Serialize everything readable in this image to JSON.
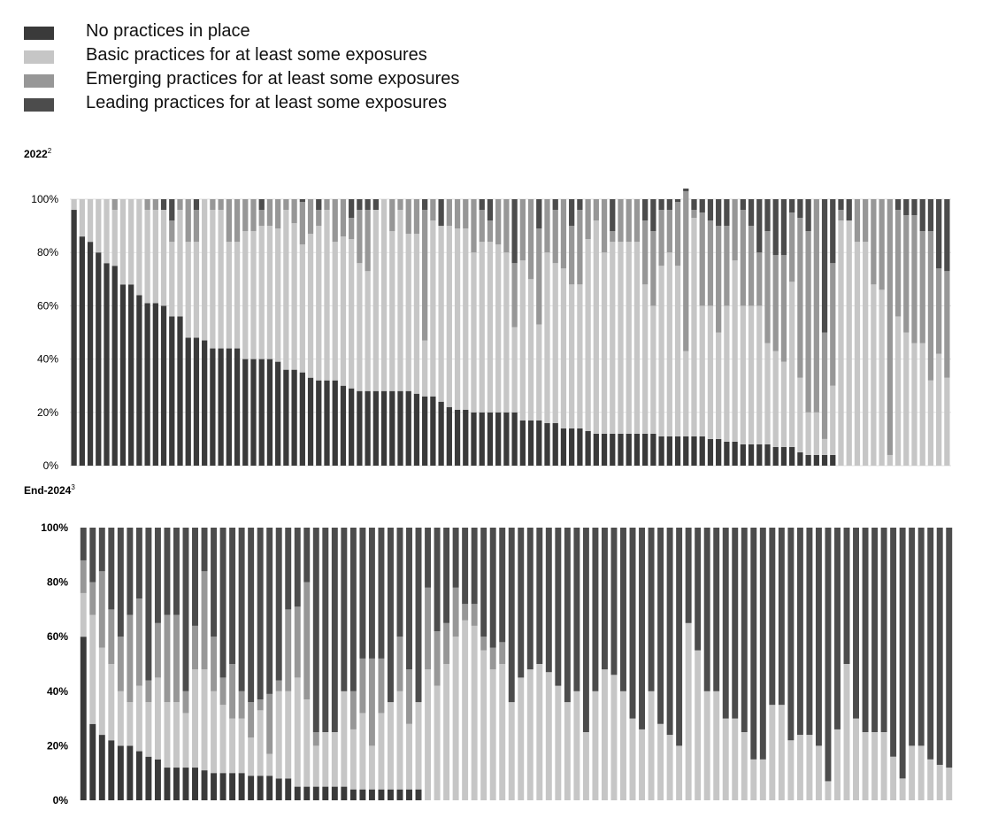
{
  "legend": [
    {
      "label": "No practices in place",
      "color": "#3a3a3a"
    },
    {
      "label": "Basic practices for at least some exposures",
      "color": "#c6c6c6"
    },
    {
      "label": "Emerging practices for at least some exposures",
      "color": "#979797"
    },
    {
      "label": "Leading practices for at least some exposures",
      "color": "#4c4c4c"
    }
  ],
  "chart_data": [
    {
      "type": "bar",
      "title": "2022",
      "title_note": "2",
      "stacked": true,
      "ylim": [
        0,
        100
      ],
      "yticks": [
        "0%",
        "20%",
        "40%",
        "60%",
        "80%",
        "100%"
      ],
      "series_names": [
        "No practices in place",
        "Basic practices for at least some exposures",
        "Emerging practices for at least some exposures",
        "Leading practices for at least some exposures"
      ],
      "bars": [
        [
          96,
          4,
          0,
          0
        ],
        [
          86,
          14,
          0,
          0
        ],
        [
          84,
          16,
          0,
          0
        ],
        [
          80,
          20,
          0,
          0
        ],
        [
          76,
          24,
          0,
          0
        ],
        [
          75,
          21,
          4,
          0
        ],
        [
          68,
          32,
          0,
          0
        ],
        [
          68,
          32,
          0,
          0
        ],
        [
          64,
          36,
          0,
          0
        ],
        [
          61,
          35,
          4,
          0
        ],
        [
          61,
          35,
          4,
          0
        ],
        [
          60,
          36,
          0,
          4
        ],
        [
          56,
          28,
          8,
          8
        ],
        [
          56,
          40,
          4,
          0
        ],
        [
          48,
          36,
          16,
          0
        ],
        [
          48,
          36,
          12,
          4
        ],
        [
          47,
          53,
          0,
          0
        ],
        [
          44,
          52,
          4,
          0
        ],
        [
          44,
          52,
          4,
          0
        ],
        [
          44,
          40,
          16,
          0
        ],
        [
          44,
          40,
          16,
          0
        ],
        [
          40,
          48,
          12,
          0
        ],
        [
          40,
          48,
          12,
          0
        ],
        [
          40,
          50,
          6,
          4
        ],
        [
          40,
          50,
          10,
          0
        ],
        [
          39,
          50,
          11,
          0
        ],
        [
          36,
          60,
          4,
          0
        ],
        [
          36,
          55,
          9,
          0
        ],
        [
          35,
          48,
          16,
          1
        ],
        [
          33,
          54,
          13,
          0
        ],
        [
          32,
          58,
          6,
          4
        ],
        [
          32,
          64,
          4,
          0
        ],
        [
          32,
          52,
          16,
          0
        ],
        [
          30,
          56,
          14,
          0
        ],
        [
          29,
          56,
          8,
          7
        ],
        [
          28,
          48,
          20,
          4
        ],
        [
          28,
          45,
          23,
          4
        ],
        [
          28,
          68,
          0,
          4
        ],
        [
          28,
          72,
          0,
          0
        ],
        [
          28,
          60,
          12,
          0
        ],
        [
          28,
          68,
          4,
          0
        ],
        [
          28,
          59,
          13,
          0
        ],
        [
          27,
          60,
          13,
          0
        ],
        [
          26,
          21,
          49,
          4
        ],
        [
          26,
          66,
          8,
          0
        ],
        [
          24,
          66,
          0,
          10
        ],
        [
          22,
          68,
          10,
          0
        ],
        [
          21,
          68,
          11,
          0
        ],
        [
          21,
          68,
          11,
          0
        ],
        [
          20,
          60,
          20,
          0
        ],
        [
          20,
          64,
          12,
          4
        ],
        [
          20,
          64,
          8,
          8
        ],
        [
          20,
          63,
          17,
          0
        ],
        [
          20,
          60,
          20,
          0
        ],
        [
          20,
          32,
          24,
          24
        ],
        [
          17,
          60,
          23,
          0
        ],
        [
          17,
          53,
          30,
          0
        ],
        [
          17,
          36,
          36,
          11
        ],
        [
          16,
          64,
          20,
          0
        ],
        [
          16,
          60,
          20,
          4
        ],
        [
          14,
          60,
          26,
          0
        ],
        [
          14,
          54,
          22,
          10
        ],
        [
          14,
          54,
          28,
          4
        ],
        [
          13,
          72,
          15,
          0
        ],
        [
          12,
          80,
          8,
          0
        ],
        [
          12,
          68,
          20,
          0
        ],
        [
          12,
          72,
          4,
          12
        ],
        [
          12,
          72,
          16,
          0
        ],
        [
          12,
          72,
          16,
          0
        ],
        [
          12,
          72,
          16,
          0
        ],
        [
          12,
          56,
          24,
          8
        ],
        [
          12,
          48,
          28,
          12
        ],
        [
          11,
          64,
          21,
          4
        ],
        [
          11,
          69,
          16,
          4
        ],
        [
          11,
          64,
          24,
          1
        ],
        [
          11,
          32,
          60,
          1
        ],
        [
          11,
          82,
          3,
          4
        ],
        [
          11,
          49,
          35,
          5
        ],
        [
          10,
          50,
          32,
          8
        ],
        [
          10,
          40,
          40,
          10
        ],
        [
          9,
          51,
          30,
          10
        ],
        [
          9,
          68,
          23,
          0
        ],
        [
          8,
          52,
          36,
          4
        ],
        [
          8,
          52,
          30,
          10
        ],
        [
          8,
          52,
          20,
          20
        ],
        [
          8,
          38,
          42,
          12
        ],
        [
          7,
          36,
          36,
          21
        ],
        [
          7,
          32,
          40,
          21
        ],
        [
          7,
          62,
          26,
          5
        ],
        [
          5,
          28,
          60,
          7
        ],
        [
          4,
          16,
          68,
          12
        ],
        [
          4,
          16,
          80,
          0
        ],
        [
          4,
          6,
          40,
          50
        ],
        [
          4,
          26,
          46,
          24
        ],
        [
          0,
          92,
          4,
          4
        ],
        [
          0,
          92,
          0,
          8
        ],
        [
          0,
          84,
          16,
          0
        ],
        [
          0,
          84,
          16,
          0
        ],
        [
          0,
          68,
          32,
          0
        ],
        [
          0,
          66,
          34,
          0
        ],
        [
          0,
          4,
          96,
          0
        ],
        [
          0,
          56,
          40,
          4
        ],
        [
          0,
          50,
          44,
          6
        ],
        [
          0,
          46,
          48,
          6
        ],
        [
          0,
          46,
          42,
          12
        ],
        [
          0,
          32,
          56,
          12
        ],
        [
          0,
          42,
          32,
          26
        ],
        [
          0,
          33,
          40,
          27
        ]
      ]
    },
    {
      "type": "bar",
      "title": "End-2024",
      "title_note": "3",
      "stacked": true,
      "ylim": [
        0,
        100
      ],
      "yticks": [
        "0%",
        "20%",
        "40%",
        "60%",
        "80%",
        "100%"
      ],
      "series_names": [
        "No practices in place",
        "Basic practices for at least some exposures",
        "Emerging practices for at least some exposures",
        "Leading practices for at least some exposures"
      ],
      "bars": [
        [
          60,
          16,
          12,
          12
        ],
        [
          28,
          40,
          12,
          20
        ],
        [
          24,
          32,
          28,
          16
        ],
        [
          22,
          28,
          20,
          30
        ],
        [
          20,
          20,
          20,
          40
        ],
        [
          20,
          16,
          32,
          32
        ],
        [
          18,
          24,
          32,
          26
        ],
        [
          16,
          20,
          8,
          56
        ],
        [
          15,
          30,
          20,
          35
        ],
        [
          12,
          24,
          32,
          32
        ],
        [
          12,
          24,
          32,
          32
        ],
        [
          12,
          20,
          8,
          60
        ],
        [
          12,
          36,
          16,
          36
        ],
        [
          11,
          37,
          36,
          16
        ],
        [
          10,
          30,
          20,
          40
        ],
        [
          10,
          25,
          10,
          55
        ],
        [
          10,
          20,
          20,
          50
        ],
        [
          10,
          20,
          10,
          60
        ],
        [
          9,
          14,
          13,
          64
        ],
        [
          9,
          24,
          4,
          63
        ],
        [
          9,
          8,
          22,
          61
        ],
        [
          8,
          32,
          4,
          56
        ],
        [
          8,
          32,
          30,
          30
        ],
        [
          5,
          40,
          26,
          29
        ],
        [
          5,
          32,
          43,
          20
        ],
        [
          5,
          15,
          5,
          75
        ],
        [
          5,
          20,
          0,
          75
        ],
        [
          5,
          20,
          0,
          75
        ],
        [
          5,
          35,
          0,
          60
        ],
        [
          4,
          22,
          14,
          60
        ],
        [
          4,
          28,
          20,
          48
        ],
        [
          4,
          16,
          32,
          48
        ],
        [
          4,
          28,
          20,
          48
        ],
        [
          4,
          32,
          0,
          64
        ],
        [
          4,
          36,
          20,
          40
        ],
        [
          4,
          24,
          20,
          52
        ],
        [
          4,
          32,
          0,
          64
        ],
        [
          0,
          48,
          30,
          22
        ],
        [
          0,
          42,
          20,
          38
        ],
        [
          0,
          50,
          15,
          35
        ],
        [
          0,
          60,
          18,
          22
        ],
        [
          0,
          66,
          6,
          28
        ],
        [
          0,
          64,
          8,
          28
        ],
        [
          0,
          55,
          5,
          40
        ],
        [
          0,
          48,
          8,
          44
        ],
        [
          0,
          50,
          8,
          42
        ],
        [
          0,
          36,
          0,
          64
        ],
        [
          0,
          45,
          0,
          55
        ],
        [
          0,
          48,
          0,
          52
        ],
        [
          0,
          50,
          0,
          50
        ],
        [
          0,
          47,
          0,
          53
        ],
        [
          0,
          42,
          0,
          58
        ],
        [
          0,
          36,
          0,
          64
        ],
        [
          0,
          40,
          0,
          60
        ],
        [
          0,
          25,
          0,
          75
        ],
        [
          0,
          40,
          0,
          60
        ],
        [
          0,
          48,
          0,
          52
        ],
        [
          0,
          46,
          0,
          54
        ],
        [
          0,
          40,
          0,
          60
        ],
        [
          0,
          30,
          0,
          70
        ],
        [
          0,
          26,
          0,
          74
        ],
        [
          0,
          40,
          0,
          60
        ],
        [
          0,
          28,
          0,
          72
        ],
        [
          0,
          24,
          0,
          76
        ],
        [
          0,
          20,
          0,
          80
        ],
        [
          0,
          65,
          0,
          35
        ],
        [
          0,
          55,
          0,
          45
        ],
        [
          0,
          40,
          0,
          60
        ],
        [
          0,
          40,
          0,
          60
        ],
        [
          0,
          30,
          0,
          70
        ],
        [
          0,
          30,
          0,
          70
        ],
        [
          0,
          25,
          0,
          75
        ],
        [
          0,
          15,
          0,
          85
        ],
        [
          0,
          15,
          0,
          85
        ],
        [
          0,
          35,
          0,
          65
        ],
        [
          0,
          35,
          0,
          65
        ],
        [
          0,
          22,
          0,
          78
        ],
        [
          0,
          24,
          0,
          76
        ],
        [
          0,
          24,
          0,
          76
        ],
        [
          0,
          20,
          0,
          80
        ],
        [
          0,
          7,
          0,
          93
        ],
        [
          0,
          26,
          0,
          74
        ],
        [
          0,
          50,
          0,
          50
        ],
        [
          0,
          30,
          0,
          70
        ],
        [
          0,
          25,
          0,
          75
        ],
        [
          0,
          25,
          0,
          75
        ],
        [
          0,
          25,
          0,
          75
        ],
        [
          0,
          16,
          0,
          84
        ],
        [
          0,
          8,
          0,
          92
        ],
        [
          0,
          20,
          0,
          80
        ],
        [
          0,
          20,
          0,
          80
        ],
        [
          0,
          15,
          0,
          85
        ],
        [
          0,
          13,
          0,
          87
        ],
        [
          0,
          12,
          0,
          88
        ]
      ]
    }
  ]
}
